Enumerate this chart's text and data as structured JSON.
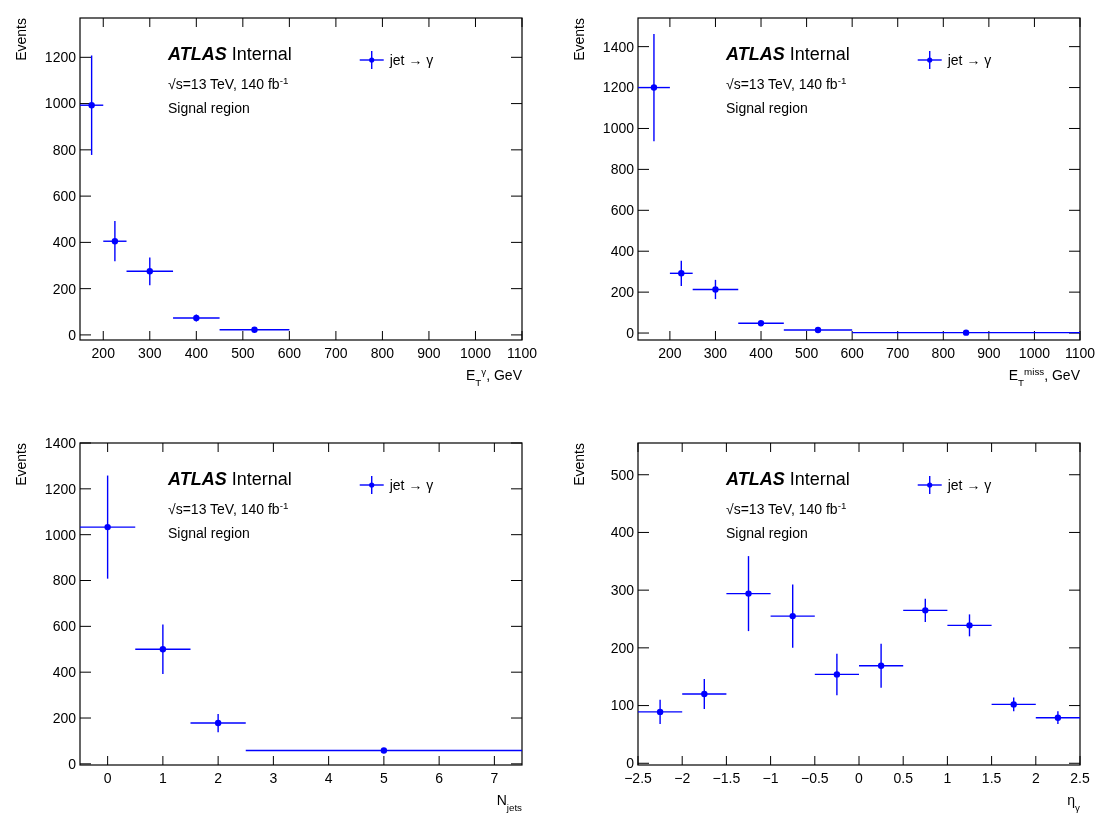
{
  "chart_data": [
    {
      "type": "scatter",
      "xlabel": "E$_{T}$$^{γ}$, GeV",
      "ylabel": "Events",
      "annotations": [
        "ATLAS Internal",
        "√s=13 TeV, 140 fb$^{-1}$",
        "Signal region"
      ],
      "xlim": [
        150,
        1100
      ],
      "ylim": [
        -22,
        1370
      ],
      "xticks": [
        200,
        300,
        400,
        500,
        600,
        700,
        800,
        900,
        1000,
        1100
      ],
      "yticks": [
        0,
        200,
        400,
        600,
        800,
        1000,
        1200
      ],
      "legend": "top right",
      "marker": "circle",
      "series": [
        {
          "name": "jet → γ",
          "color": "#0000ff",
          "x": [
            175,
            225,
            300,
            400,
            525
          ],
          "values": [
            993,
            405,
            275,
            73,
            22
          ],
          "errors": [
            215,
            87,
            60,
            15,
            5
          ],
          "xerrors": [
            25,
            25,
            50,
            50,
            75
          ]
        }
      ]
    },
    {
      "type": "scatter",
      "xlabel": "E$_{T}$$^{miss}$, GeV",
      "ylabel": "Events",
      "annotations": [
        "ATLAS Internal",
        "√s=13 TeV, 140 fb$^{-1}$",
        "Signal region"
      ],
      "xlim": [
        130,
        1100
      ],
      "ylim": [
        -34,
        1540
      ],
      "xticks": [
        200,
        300,
        400,
        500,
        600,
        700,
        800,
        900,
        1000,
        1100
      ],
      "yticks": [
        0,
        200,
        400,
        600,
        800,
        1000,
        1200,
        1400
      ],
      "legend": "top right",
      "marker": "circle",
      "series": [
        {
          "name": "jet → γ",
          "color": "#0000ff",
          "x": [
            165,
            225,
            300,
            400,
            525,
            850
          ],
          "values": [
            1200,
            292,
            213,
            48,
            15,
            2
          ],
          "errors": [
            262,
            62,
            47,
            8,
            4,
            null
          ],
          "xerrors": [
            35,
            25,
            50,
            50,
            75,
            250
          ]
        }
      ]
    },
    {
      "type": "scatter",
      "xlabel": "N$_{jets}$",
      "ylabel": "Events",
      "annotations": [
        "ATLAS Internal",
        "√s=13 TeV, 140 fb$^{-1}$",
        "Signal region"
      ],
      "xlim": [
        -0.5,
        7.5
      ],
      "ylim": [
        -5,
        1400
      ],
      "xticks": [
        0,
        1,
        2,
        3,
        4,
        5,
        6,
        7
      ],
      "yticks": [
        0,
        200,
        400,
        600,
        800,
        1000,
        1200,
        1400
      ],
      "legend": "top right",
      "marker": "circle",
      "series": [
        {
          "name": "jet → γ",
          "color": "#0000ff",
          "x": [
            0,
            1,
            2,
            5
          ],
          "values": [
            1033,
            500,
            178,
            58
          ],
          "errors": [
            225,
            108,
            40,
            5
          ],
          "xerrors": [
            0.5,
            0.5,
            0.5,
            2.5
          ]
        }
      ]
    },
    {
      "type": "scatter",
      "xlabel": "η$_{γ}$",
      "ylabel": "Events",
      "annotations": [
        "ATLAS Internal",
        "√s=13 TeV, 140 fb$^{-1}$",
        "Signal region"
      ],
      "xlim": [
        -2.5,
        2.5
      ],
      "ylim": [
        -3,
        555
      ],
      "xticks": [
        {
          "value": -2.5,
          "label": "−2.5"
        },
        {
          "value": -2,
          "label": "−2"
        },
        {
          "value": -1.5,
          "label": "−1.5"
        },
        {
          "value": -1,
          "label": "−1"
        },
        {
          "value": -0.5,
          "label": "−0.5"
        },
        0,
        0.5,
        1,
        1.5,
        2,
        2.5
      ],
      "yticks": [
        0,
        100,
        200,
        300,
        400,
        500
      ],
      "legend": "top right",
      "marker": "circle",
      "series": [
        {
          "name": "jet → γ",
          "color": "#0000ff",
          "x": [
            -2.25,
            -1.75,
            -1.25,
            -0.75,
            -0.25,
            0.25,
            0.75,
            1.25,
            1.75,
            2.25
          ],
          "values": [
            89,
            120,
            294,
            255,
            154,
            169,
            265,
            239,
            102,
            79
          ],
          "errors": [
            21,
            26,
            65,
            55,
            36,
            38,
            20,
            19,
            12,
            11
          ],
          "xerrors": [
            0.25,
            0.25,
            0.25,
            0.25,
            0.25,
            0.25,
            0.25,
            0.25,
            0.25,
            0.25
          ]
        }
      ]
    }
  ]
}
